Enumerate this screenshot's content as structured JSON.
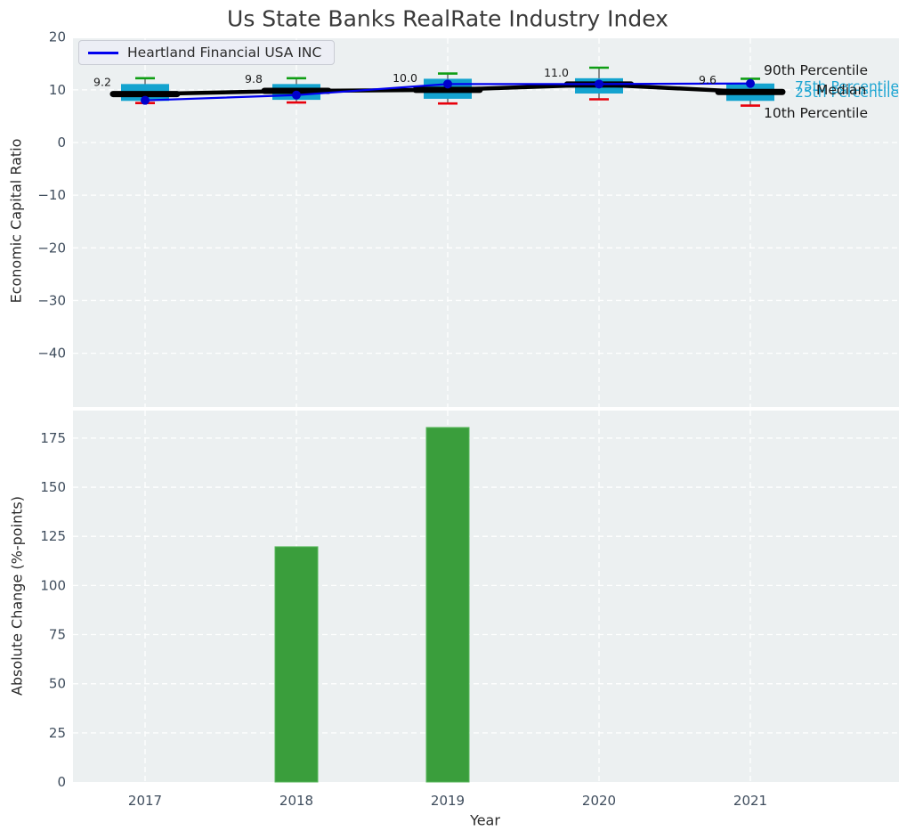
{
  "title": "Us State Banks RealRate Industry Index",
  "annotations": {
    "p90": "90th Percentile",
    "p75": "75th Percentile",
    "median": "Median",
    "p25": "25th Percentile",
    "p10": "10th Percentile"
  },
  "colors": {
    "box_fill": "#14a3cf",
    "whisker": "#555555",
    "cap_high": "#0f9e14",
    "cap_low": "#e8000b",
    "median_line": "#000000",
    "company_line": "#0000ee",
    "company_marker": "#0000cc",
    "bar_fill": "#3a9e3c",
    "bar_edge": "#57b75a",
    "plot_bg": "#ecf0f1",
    "grid": "#ffffff",
    "tick_text": "#3f4d5d",
    "label_text": "#1a1a1a",
    "cyan_text": "#1da5d2"
  },
  "chart_data": [
    {
      "type": "boxplot+line",
      "title": "Us State Banks RealRate Industry Index",
      "ylabel": "Economic Capital Ratio",
      "categories": [
        "2017",
        "2018",
        "2019",
        "2020",
        "2021"
      ],
      "yticks": [
        20,
        10,
        0,
        -10,
        -20,
        -30,
        -40
      ],
      "ylim": [
        -50,
        20
      ],
      "grid": true,
      "legend_position": "upper left",
      "boxes": [
        {
          "year": "2017",
          "p10": 7.5,
          "p25": 7.9,
          "median": 9.2,
          "p75": 11.1,
          "p90": 12.2
        },
        {
          "year": "2018",
          "p10": 7.6,
          "p25": 8.1,
          "median": 9.8,
          "p75": 11.1,
          "p90": 12.2
        },
        {
          "year": "2019",
          "p10": 7.4,
          "p25": 8.3,
          "median": 10.0,
          "p75": 12.1,
          "p90": 13.1
        },
        {
          "year": "2020",
          "p10": 8.2,
          "p25": 9.3,
          "median": 11.0,
          "p75": 12.2,
          "p90": 14.2
        },
        {
          "year": "2021",
          "p10": 7.0,
          "p25": 7.9,
          "median": 9.6,
          "p75": 11.2,
          "p90": 12.1
        }
      ],
      "median_labels": [
        "9.2",
        "9.8",
        "10.0",
        "11.0",
        "9.6"
      ],
      "series": [
        {
          "name": "Heartland Financial USA INC",
          "values": [
            8.0,
            9.0,
            11.1,
            11.1,
            11.2
          ]
        }
      ]
    },
    {
      "type": "bar",
      "ylabel": "Absolute Change (%-points)",
      "xlabel": "Year",
      "categories": [
        "2017",
        "2018",
        "2019",
        "2020",
        "2021"
      ],
      "values": [
        0,
        119.7,
        180.4,
        0,
        0
      ],
      "yticks": [
        0,
        25,
        50,
        75,
        100,
        125,
        150,
        175
      ],
      "ylim": [
        0,
        189
      ],
      "grid": true
    }
  ]
}
